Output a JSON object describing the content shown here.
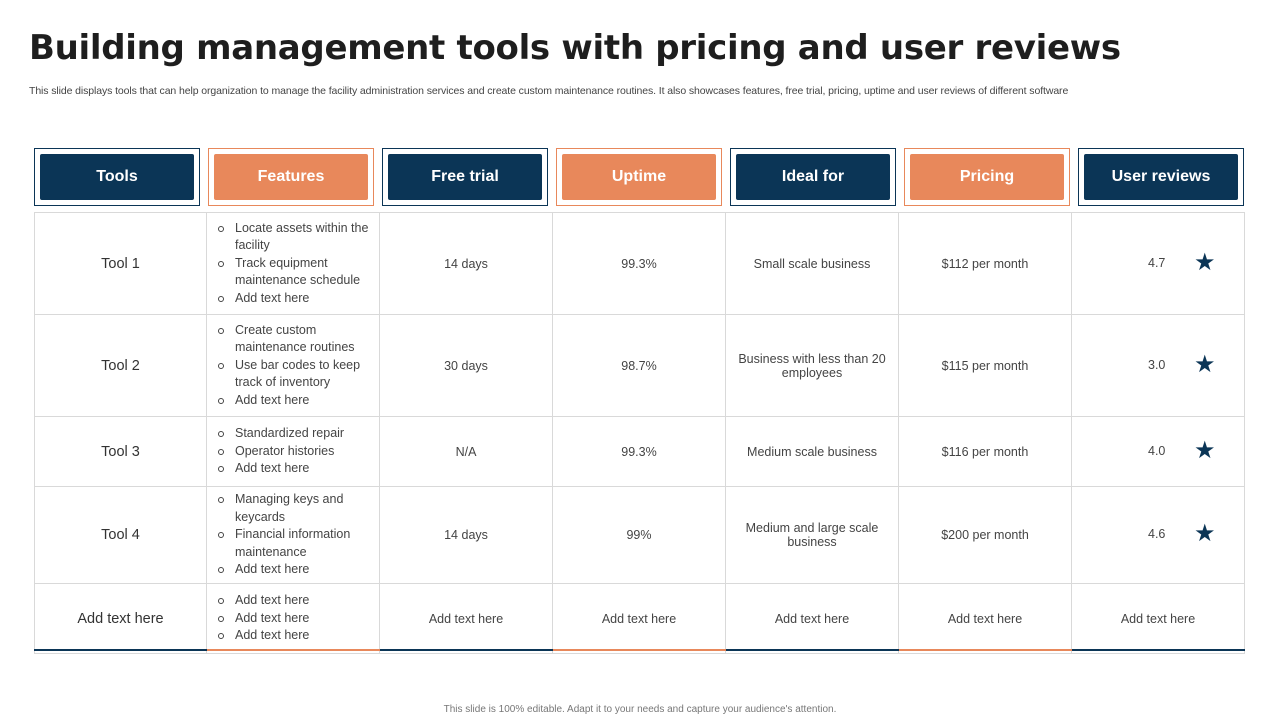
{
  "title": "Building management tools with pricing and user reviews",
  "subtitle": "This slide displays tools that can help organization to manage the facility administration services and create custom maintenance routines. It also showcases features, free trial, pricing, uptime and user reviews of different software",
  "colors": {
    "dark": "#0b3556",
    "accent": "#e8885b"
  },
  "headers": [
    "Tools",
    "Features",
    "Free trial",
    "Uptime",
    "Ideal for",
    "Pricing",
    "User reviews"
  ],
  "rows": [
    {
      "tool": "Tool 1",
      "features": [
        "Locate assets within the facility",
        "Track equipment maintenance schedule",
        "Add text here"
      ],
      "free_trial": "14 days",
      "uptime": "99.3%",
      "ideal_for": "Small scale business",
      "pricing": "$112 per month",
      "rating": "4.7",
      "rating_icon": "star-icon"
    },
    {
      "tool": "Tool 2",
      "features": [
        "Create custom maintenance routines",
        "Use bar codes to keep track of inventory",
        "Add text here"
      ],
      "free_trial": "30 days",
      "uptime": "98.7%",
      "ideal_for": "Business with less than 20 employees",
      "pricing": "$115 per month",
      "rating": "3.0",
      "rating_icon": "star-icon"
    },
    {
      "tool": "Tool 3",
      "features": [
        "Standardized repair",
        "Operator histories",
        "Add text here"
      ],
      "free_trial": "N/A",
      "uptime": "99.3%",
      "ideal_for": "Medium scale business",
      "pricing": "$116 per month",
      "rating": "4.0",
      "rating_icon": "star-icon"
    },
    {
      "tool": "Tool 4",
      "features": [
        "Managing keys and keycards",
        "Financial information maintenance",
        "Add text here"
      ],
      "free_trial": "14 days",
      "uptime": "99%",
      "ideal_for": "Medium and large scale business",
      "pricing": "$200 per month",
      "rating": "4.6",
      "rating_icon": "star-icon"
    },
    {
      "tool": "Add text here",
      "features": [
        "Add text here",
        "Add text here",
        "Add text here"
      ],
      "free_trial": "Add text here",
      "uptime": "Add text here",
      "ideal_for": "Add text here",
      "pricing": "Add text here",
      "user_reviews": "Add text here"
    }
  ],
  "footer": "This slide is 100% editable. Adapt it to your needs and capture your audience's attention."
}
